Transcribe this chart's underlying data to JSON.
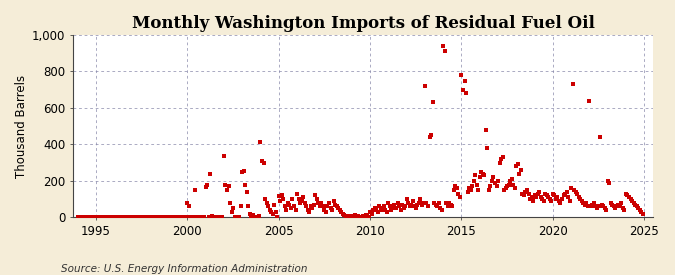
{
  "title": "Monthly Washington Imports of Residual Fuel Oil",
  "ylabel": "Thousand Barrels",
  "source": "Source: U.S. Energy Information Administration",
  "figure_bg_color": "#f5edd8",
  "plot_bg_color": "#ffffff",
  "marker_color": "#cc0000",
  "marker": "s",
  "marker_size": 2.8,
  "xlim": [
    1993.75,
    2025.5
  ],
  "ylim": [
    0,
    1000
  ],
  "yticks": [
    0,
    200,
    400,
    600,
    800,
    1000
  ],
  "ytick_labels": [
    "0",
    "200",
    "400",
    "600",
    "800",
    "1,000"
  ],
  "xticks": [
    1995,
    2000,
    2005,
    2010,
    2015,
    2020,
    2025
  ],
  "title_fontsize": 12,
  "axis_fontsize": 8.5,
  "source_fontsize": 7.5,
  "data": [
    [
      1994.0,
      0
    ],
    [
      1994.083,
      0
    ],
    [
      1994.167,
      0
    ],
    [
      1994.25,
      0
    ],
    [
      1994.333,
      0
    ],
    [
      1994.417,
      0
    ],
    [
      1994.5,
      0
    ],
    [
      1994.583,
      0
    ],
    [
      1994.667,
      0
    ],
    [
      1994.75,
      0
    ],
    [
      1994.833,
      0
    ],
    [
      1994.917,
      0
    ],
    [
      1995.0,
      0
    ],
    [
      1995.083,
      0
    ],
    [
      1995.167,
      0
    ],
    [
      1995.25,
      0
    ],
    [
      1995.333,
      0
    ],
    [
      1995.417,
      0
    ],
    [
      1995.5,
      0
    ],
    [
      1995.583,
      0
    ],
    [
      1995.667,
      0
    ],
    [
      1995.75,
      0
    ],
    [
      1995.833,
      0
    ],
    [
      1995.917,
      0
    ],
    [
      1996.0,
      0
    ],
    [
      1996.083,
      0
    ],
    [
      1996.167,
      0
    ],
    [
      1996.25,
      0
    ],
    [
      1996.333,
      0
    ],
    [
      1996.417,
      0
    ],
    [
      1996.5,
      0
    ],
    [
      1996.583,
      0
    ],
    [
      1996.667,
      0
    ],
    [
      1996.75,
      0
    ],
    [
      1996.833,
      0
    ],
    [
      1996.917,
      0
    ],
    [
      1997.0,
      0
    ],
    [
      1997.083,
      0
    ],
    [
      1997.167,
      0
    ],
    [
      1997.25,
      0
    ],
    [
      1997.333,
      0
    ],
    [
      1997.417,
      0
    ],
    [
      1997.5,
      0
    ],
    [
      1997.583,
      0
    ],
    [
      1997.667,
      0
    ],
    [
      1997.75,
      0
    ],
    [
      1997.833,
      0
    ],
    [
      1997.917,
      0
    ],
    [
      1998.0,
      0
    ],
    [
      1998.083,
      0
    ],
    [
      1998.167,
      0
    ],
    [
      1998.25,
      0
    ],
    [
      1998.333,
      0
    ],
    [
      1998.417,
      0
    ],
    [
      1998.5,
      0
    ],
    [
      1998.583,
      0
    ],
    [
      1998.667,
      0
    ],
    [
      1998.75,
      0
    ],
    [
      1998.833,
      0
    ],
    [
      1998.917,
      0
    ],
    [
      1999.0,
      0
    ],
    [
      1999.083,
      0
    ],
    [
      1999.167,
      0
    ],
    [
      1999.25,
      0
    ],
    [
      1999.333,
      0
    ],
    [
      1999.417,
      0
    ],
    [
      1999.5,
      0
    ],
    [
      1999.583,
      0
    ],
    [
      1999.667,
      0
    ],
    [
      1999.75,
      0
    ],
    [
      1999.833,
      0
    ],
    [
      1999.917,
      0
    ],
    [
      2000.0,
      78
    ],
    [
      2000.083,
      65
    ],
    [
      2000.167,
      0
    ],
    [
      2000.25,
      0
    ],
    [
      2000.333,
      0
    ],
    [
      2000.417,
      150
    ],
    [
      2000.5,
      0
    ],
    [
      2000.583,
      0
    ],
    [
      2000.667,
      0
    ],
    [
      2000.75,
      0
    ],
    [
      2000.833,
      0
    ],
    [
      2000.917,
      0
    ],
    [
      2001.0,
      165
    ],
    [
      2001.083,
      175
    ],
    [
      2001.167,
      0
    ],
    [
      2001.25,
      240
    ],
    [
      2001.333,
      10
    ],
    [
      2001.417,
      0
    ],
    [
      2001.5,
      0
    ],
    [
      2001.583,
      0
    ],
    [
      2001.667,
      0
    ],
    [
      2001.75,
      0
    ],
    [
      2001.833,
      0
    ],
    [
      2001.917,
      0
    ],
    [
      2002.0,
      335
    ],
    [
      2002.083,
      175
    ],
    [
      2002.167,
      150
    ],
    [
      2002.25,
      170
    ],
    [
      2002.333,
      80
    ],
    [
      2002.417,
      30
    ],
    [
      2002.5,
      50
    ],
    [
      2002.583,
      0
    ],
    [
      2002.667,
      0
    ],
    [
      2002.75,
      0
    ],
    [
      2002.833,
      0
    ],
    [
      2002.917,
      60
    ],
    [
      2003.0,
      250
    ],
    [
      2003.083,
      255
    ],
    [
      2003.167,
      180
    ],
    [
      2003.25,
      140
    ],
    [
      2003.333,
      60
    ],
    [
      2003.417,
      20
    ],
    [
      2003.5,
      0
    ],
    [
      2003.583,
      15
    ],
    [
      2003.667,
      0
    ],
    [
      2003.75,
      0
    ],
    [
      2003.833,
      0
    ],
    [
      2003.917,
      10
    ],
    [
      2004.0,
      415
    ],
    [
      2004.083,
      310
    ],
    [
      2004.167,
      300
    ],
    [
      2004.25,
      100
    ],
    [
      2004.333,
      80
    ],
    [
      2004.417,
      60
    ],
    [
      2004.5,
      40
    ],
    [
      2004.583,
      30
    ],
    [
      2004.667,
      20
    ],
    [
      2004.75,
      70
    ],
    [
      2004.833,
      30
    ],
    [
      2004.917,
      0
    ],
    [
      2005.0,
      115
    ],
    [
      2005.083,
      90
    ],
    [
      2005.167,
      120
    ],
    [
      2005.25,
      100
    ],
    [
      2005.333,
      60
    ],
    [
      2005.417,
      40
    ],
    [
      2005.5,
      80
    ],
    [
      2005.583,
      70
    ],
    [
      2005.667,
      50
    ],
    [
      2005.75,
      100
    ],
    [
      2005.833,
      60
    ],
    [
      2005.917,
      40
    ],
    [
      2006.0,
      130
    ],
    [
      2006.083,
      100
    ],
    [
      2006.167,
      80
    ],
    [
      2006.25,
      90
    ],
    [
      2006.333,
      110
    ],
    [
      2006.417,
      80
    ],
    [
      2006.5,
      60
    ],
    [
      2006.583,
      40
    ],
    [
      2006.667,
      30
    ],
    [
      2006.75,
      60
    ],
    [
      2006.833,
      50
    ],
    [
      2006.917,
      70
    ],
    [
      2007.0,
      120
    ],
    [
      2007.083,
      100
    ],
    [
      2007.167,
      80
    ],
    [
      2007.25,
      60
    ],
    [
      2007.333,
      80
    ],
    [
      2007.417,
      60
    ],
    [
      2007.5,
      40
    ],
    [
      2007.583,
      30
    ],
    [
      2007.667,
      60
    ],
    [
      2007.75,
      80
    ],
    [
      2007.833,
      50
    ],
    [
      2007.917,
      40
    ],
    [
      2008.0,
      90
    ],
    [
      2008.083,
      70
    ],
    [
      2008.167,
      60
    ],
    [
      2008.25,
      50
    ],
    [
      2008.333,
      40
    ],
    [
      2008.417,
      30
    ],
    [
      2008.5,
      20
    ],
    [
      2008.583,
      15
    ],
    [
      2008.667,
      10
    ],
    [
      2008.75,
      5
    ],
    [
      2008.833,
      10
    ],
    [
      2008.917,
      0
    ],
    [
      2009.0,
      10
    ],
    [
      2009.083,
      5
    ],
    [
      2009.167,
      15
    ],
    [
      2009.25,
      10
    ],
    [
      2009.333,
      5
    ],
    [
      2009.417,
      0
    ],
    [
      2009.5,
      0
    ],
    [
      2009.583,
      5
    ],
    [
      2009.667,
      10
    ],
    [
      2009.75,
      15
    ],
    [
      2009.833,
      5
    ],
    [
      2009.917,
      0
    ],
    [
      2010.0,
      30
    ],
    [
      2010.083,
      20
    ],
    [
      2010.167,
      40
    ],
    [
      2010.25,
      50
    ],
    [
      2010.333,
      40
    ],
    [
      2010.417,
      30
    ],
    [
      2010.5,
      60
    ],
    [
      2010.583,
      50
    ],
    [
      2010.667,
      40
    ],
    [
      2010.75,
      60
    ],
    [
      2010.833,
      40
    ],
    [
      2010.917,
      30
    ],
    [
      2011.0,
      80
    ],
    [
      2011.083,
      60
    ],
    [
      2011.167,
      40
    ],
    [
      2011.25,
      50
    ],
    [
      2011.333,
      70
    ],
    [
      2011.417,
      50
    ],
    [
      2011.5,
      80
    ],
    [
      2011.583,
      60
    ],
    [
      2011.667,
      40
    ],
    [
      2011.75,
      70
    ],
    [
      2011.833,
      50
    ],
    [
      2011.917,
      60
    ],
    [
      2012.0,
      100
    ],
    [
      2012.083,
      80
    ],
    [
      2012.167,
      60
    ],
    [
      2012.25,
      70
    ],
    [
      2012.333,
      90
    ],
    [
      2012.417,
      60
    ],
    [
      2012.5,
      50
    ],
    [
      2012.583,
      70
    ],
    [
      2012.667,
      80
    ],
    [
      2012.75,
      100
    ],
    [
      2012.833,
      70
    ],
    [
      2012.917,
      80
    ],
    [
      2013.0,
      720
    ],
    [
      2013.083,
      80
    ],
    [
      2013.167,
      60
    ],
    [
      2013.25,
      440
    ],
    [
      2013.333,
      450
    ],
    [
      2013.417,
      630
    ],
    [
      2013.5,
      80
    ],
    [
      2013.583,
      70
    ],
    [
      2013.667,
      60
    ],
    [
      2013.75,
      80
    ],
    [
      2013.833,
      50
    ],
    [
      2013.917,
      40
    ],
    [
      2014.0,
      940
    ],
    [
      2014.083,
      910
    ],
    [
      2014.167,
      80
    ],
    [
      2014.25,
      60
    ],
    [
      2014.333,
      80
    ],
    [
      2014.417,
      70
    ],
    [
      2014.5,
      60
    ],
    [
      2014.583,
      150
    ],
    [
      2014.667,
      170
    ],
    [
      2014.75,
      160
    ],
    [
      2014.833,
      130
    ],
    [
      2014.917,
      110
    ],
    [
      2015.0,
      780
    ],
    [
      2015.083,
      700
    ],
    [
      2015.167,
      750
    ],
    [
      2015.25,
      680
    ],
    [
      2015.333,
      140
    ],
    [
      2015.417,
      160
    ],
    [
      2015.5,
      150
    ],
    [
      2015.583,
      170
    ],
    [
      2015.667,
      200
    ],
    [
      2015.75,
      230
    ],
    [
      2015.833,
      180
    ],
    [
      2015.917,
      150
    ],
    [
      2016.0,
      220
    ],
    [
      2016.083,
      250
    ],
    [
      2016.167,
      240
    ],
    [
      2016.25,
      230
    ],
    [
      2016.333,
      480
    ],
    [
      2016.417,
      380
    ],
    [
      2016.5,
      150
    ],
    [
      2016.583,
      170
    ],
    [
      2016.667,
      200
    ],
    [
      2016.75,
      220
    ],
    [
      2016.833,
      190
    ],
    [
      2016.917,
      170
    ],
    [
      2017.0,
      200
    ],
    [
      2017.083,
      300
    ],
    [
      2017.167,
      320
    ],
    [
      2017.25,
      330
    ],
    [
      2017.333,
      150
    ],
    [
      2017.417,
      160
    ],
    [
      2017.5,
      170
    ],
    [
      2017.583,
      180
    ],
    [
      2017.667,
      200
    ],
    [
      2017.75,
      210
    ],
    [
      2017.833,
      180
    ],
    [
      2017.917,
      160
    ],
    [
      2018.0,
      280
    ],
    [
      2018.083,
      290
    ],
    [
      2018.167,
      240
    ],
    [
      2018.25,
      260
    ],
    [
      2018.333,
      130
    ],
    [
      2018.417,
      120
    ],
    [
      2018.5,
      140
    ],
    [
      2018.583,
      150
    ],
    [
      2018.667,
      130
    ],
    [
      2018.75,
      100
    ],
    [
      2018.833,
      110
    ],
    [
      2018.917,
      90
    ],
    [
      2019.0,
      120
    ],
    [
      2019.083,
      110
    ],
    [
      2019.167,
      130
    ],
    [
      2019.25,
      140
    ],
    [
      2019.333,
      110
    ],
    [
      2019.417,
      100
    ],
    [
      2019.5,
      90
    ],
    [
      2019.583,
      130
    ],
    [
      2019.667,
      120
    ],
    [
      2019.75,
      110
    ],
    [
      2019.833,
      100
    ],
    [
      2019.917,
      90
    ],
    [
      2020.0,
      130
    ],
    [
      2020.083,
      120
    ],
    [
      2020.167,
      100
    ],
    [
      2020.25,
      110
    ],
    [
      2020.333,
      90
    ],
    [
      2020.417,
      80
    ],
    [
      2020.5,
      100
    ],
    [
      2020.583,
      120
    ],
    [
      2020.667,
      130
    ],
    [
      2020.75,
      140
    ],
    [
      2020.833,
      110
    ],
    [
      2020.917,
      90
    ],
    [
      2021.0,
      160
    ],
    [
      2021.083,
      730
    ],
    [
      2021.167,
      150
    ],
    [
      2021.25,
      140
    ],
    [
      2021.333,
      130
    ],
    [
      2021.417,
      110
    ],
    [
      2021.5,
      100
    ],
    [
      2021.583,
      90
    ],
    [
      2021.667,
      80
    ],
    [
      2021.75,
      70
    ],
    [
      2021.833,
      80
    ],
    [
      2021.917,
      60
    ],
    [
      2022.0,
      640
    ],
    [
      2022.083,
      60
    ],
    [
      2022.167,
      70
    ],
    [
      2022.25,
      80
    ],
    [
      2022.333,
      60
    ],
    [
      2022.417,
      50
    ],
    [
      2022.5,
      60
    ],
    [
      2022.583,
      440
    ],
    [
      2022.667,
      70
    ],
    [
      2022.75,
      60
    ],
    [
      2022.833,
      50
    ],
    [
      2022.917,
      40
    ],
    [
      2023.0,
      200
    ],
    [
      2023.083,
      190
    ],
    [
      2023.167,
      80
    ],
    [
      2023.25,
      70
    ],
    [
      2023.333,
      60
    ],
    [
      2023.417,
      50
    ],
    [
      2023.5,
      60
    ],
    [
      2023.583,
      70
    ],
    [
      2023.667,
      60
    ],
    [
      2023.75,
      80
    ],
    [
      2023.833,
      50
    ],
    [
      2023.917,
      40
    ],
    [
      2024.0,
      130
    ],
    [
      2024.083,
      120
    ],
    [
      2024.167,
      110
    ],
    [
      2024.25,
      100
    ],
    [
      2024.333,
      90
    ],
    [
      2024.417,
      80
    ],
    [
      2024.5,
      70
    ],
    [
      2024.583,
      60
    ],
    [
      2024.667,
      50
    ],
    [
      2024.75,
      40
    ],
    [
      2024.833,
      30
    ],
    [
      2024.917,
      20
    ]
  ]
}
